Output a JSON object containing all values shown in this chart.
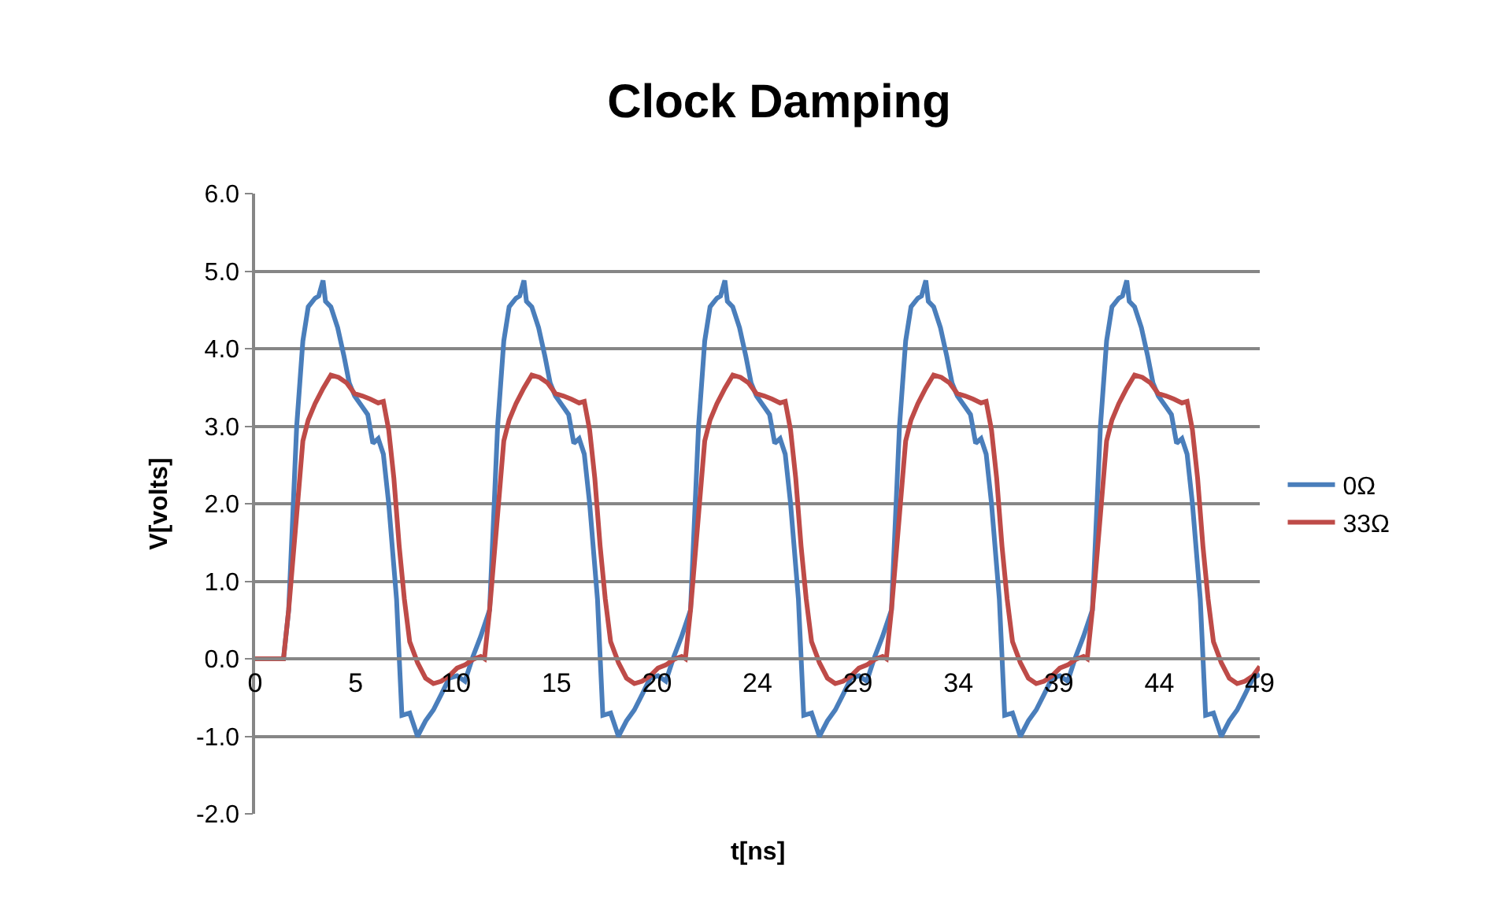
{
  "chart_data": {
    "type": "line",
    "title": "Clock Damping",
    "xlabel": "t[ns]",
    "ylabel": "V[volts]",
    "xlim": [
      0,
      48.8
    ],
    "xticks": [
      {
        "value": 0,
        "label": "0"
      },
      {
        "value": 4.88,
        "label": "5"
      },
      {
        "value": 9.76,
        "label": "10"
      },
      {
        "value": 14.64,
        "label": "15"
      },
      {
        "value": 19.52,
        "label": "20"
      },
      {
        "value": 24.4,
        "label": "24"
      },
      {
        "value": 29.28,
        "label": "29"
      },
      {
        "value": 34.16,
        "label": "34"
      },
      {
        "value": 39.04,
        "label": "39"
      },
      {
        "value": 43.92,
        "label": "44"
      },
      {
        "value": 48.8,
        "label": "49"
      }
    ],
    "ylim": [
      -2,
      6
    ],
    "yticks": [
      {
        "value": -2,
        "label": "-2.0"
      },
      {
        "value": -1,
        "label": "-1.0"
      },
      {
        "value": 0,
        "label": "0.0"
      },
      {
        "value": 1,
        "label": "1.0"
      },
      {
        "value": 2,
        "label": "2.0"
      },
      {
        "value": 3,
        "label": "3.0"
      },
      {
        "value": 4,
        "label": "4.0"
      },
      {
        "value": 5,
        "label": "5.0"
      },
      {
        "value": 6,
        "label": "6.0"
      }
    ],
    "grid": "y",
    "legend": "right",
    "marker": "none",
    "line_style": "solid",
    "series": [
      {
        "name": "0Ω",
        "color": "#4a7ebb",
        "x": [
          0,
          1.38,
          1.63,
          2.02,
          2.32,
          2.58,
          2.91,
          3.09,
          3.3,
          3.42,
          3.68,
          4.01,
          4.32,
          4.57,
          4.83,
          5.21,
          5.47,
          5.72,
          5.98,
          6.23,
          6.49,
          6.87,
          7.13,
          7.51,
          7.89,
          8.28,
          8.66,
          9.04,
          9.43,
          9.81,
          10.19,
          10.57,
          10.96,
          11.39,
          11.78,
          12.08,
          12.34,
          12.67,
          12.85,
          13.06,
          13.18,
          13.44,
          13.77,
          14.08,
          14.33,
          14.59,
          14.97,
          15.23,
          15.48,
          15.74,
          15.99,
          16.25,
          16.63,
          16.89,
          17.27,
          17.65,
          18.04,
          18.42,
          18.8,
          19.19,
          19.57,
          19.95,
          20.33,
          20.72,
          21.15,
          21.54,
          21.84,
          22.1,
          22.43,
          22.61,
          22.82,
          22.94,
          23.2,
          23.53,
          23.84,
          24.09,
          24.35,
          24.73,
          24.99,
          25.24,
          25.5,
          25.75,
          26.01,
          26.39,
          26.65,
          27.03,
          27.41,
          27.8,
          28.18,
          28.56,
          28.95,
          29.33,
          29.71,
          30.09,
          30.48,
          30.91,
          31.3,
          31.6,
          31.86,
          32.19,
          32.37,
          32.58,
          32.7,
          32.96,
          33.29,
          33.6,
          33.85,
          34.11,
          34.49,
          34.75,
          35.0,
          35.26,
          35.51,
          35.77,
          36.15,
          36.41,
          36.79,
          37.17,
          37.56,
          37.94,
          38.32,
          38.71,
          39.09,
          39.47,
          39.85,
          40.24,
          40.67,
          41.06,
          41.36,
          41.62,
          41.95,
          42.13,
          42.34,
          42.46,
          42.72,
          43.05,
          43.36,
          43.61,
          43.87,
          44.25,
          44.51,
          44.76,
          45.02,
          45.27,
          45.53,
          45.91,
          46.17,
          46.55,
          46.93,
          47.32,
          47.7,
          48.08,
          48.47,
          48.8
        ],
        "values": [
          0,
          0,
          0.63,
          3.0,
          4.1,
          4.54,
          4.65,
          4.68,
          4.88,
          4.61,
          4.54,
          4.27,
          3.9,
          3.56,
          3.39,
          3.25,
          3.15,
          2.78,
          2.84,
          2.64,
          2.0,
          0.77,
          -0.73,
          -0.7,
          -1.0,
          -0.8,
          -0.66,
          -0.46,
          -0.25,
          -0.22,
          -0.29,
          0.02,
          0.29,
          0.63,
          3.0,
          4.1,
          4.54,
          4.65,
          4.68,
          4.88,
          4.61,
          4.54,
          4.27,
          3.9,
          3.56,
          3.39,
          3.25,
          3.15,
          2.78,
          2.84,
          2.64,
          2.0,
          0.77,
          -0.73,
          -0.7,
          -1.0,
          -0.8,
          -0.66,
          -0.46,
          -0.25,
          -0.22,
          -0.29,
          0.02,
          0.29,
          0.63,
          3.0,
          4.1,
          4.54,
          4.65,
          4.68,
          4.88,
          4.61,
          4.54,
          4.27,
          3.9,
          3.56,
          3.39,
          3.25,
          3.15,
          2.78,
          2.84,
          2.64,
          2.0,
          0.77,
          -0.73,
          -0.7,
          -1.0,
          -0.8,
          -0.66,
          -0.46,
          -0.25,
          -0.22,
          -0.29,
          0.02,
          0.29,
          0.63,
          3.0,
          4.1,
          4.54,
          4.65,
          4.68,
          4.88,
          4.61,
          4.54,
          4.27,
          3.9,
          3.56,
          3.39,
          3.25,
          3.15,
          2.78,
          2.84,
          2.64,
          2.0,
          0.77,
          -0.73,
          -0.7,
          -1.0,
          -0.8,
          -0.66,
          -0.46,
          -0.25,
          -0.22,
          -0.29,
          0.02,
          0.29,
          0.63,
          3.0,
          4.1,
          4.54,
          4.65,
          4.68,
          4.88,
          4.61,
          4.54,
          4.27,
          3.9,
          3.56,
          3.39,
          3.25,
          3.15,
          2.78,
          2.84,
          2.64,
          2.0,
          0.77,
          -0.73,
          -0.7,
          -1.0,
          -0.8,
          -0.66,
          -0.46,
          -0.25,
          -0.2
        ]
      },
      {
        "name": "33Ω",
        "color": "#be4b48",
        "x": [
          0,
          1.38,
          1.63,
          2.02,
          2.32,
          2.58,
          2.91,
          3.3,
          3.68,
          4.06,
          4.44,
          4.83,
          5.21,
          5.59,
          5.98,
          6.23,
          6.49,
          6.74,
          7.0,
          7.25,
          7.51,
          7.89,
          8.28,
          8.66,
          9.04,
          9.43,
          9.81,
          10.19,
          10.57,
          10.96,
          11.14,
          11.39,
          11.78,
          12.08,
          12.34,
          12.67,
          13.06,
          13.44,
          13.82,
          14.2,
          14.59,
          14.97,
          15.35,
          15.74,
          15.99,
          16.25,
          16.5,
          16.76,
          17.01,
          17.27,
          17.65,
          18.04,
          18.42,
          18.8,
          19.19,
          19.57,
          19.95,
          20.33,
          20.72,
          20.9,
          21.15,
          21.54,
          21.84,
          22.1,
          22.43,
          22.82,
          23.2,
          23.58,
          23.96,
          24.35,
          24.73,
          25.11,
          25.5,
          25.75,
          26.01,
          26.26,
          26.52,
          26.77,
          27.03,
          27.41,
          27.8,
          28.18,
          28.56,
          28.95,
          29.33,
          29.71,
          30.09,
          30.48,
          30.66,
          30.91,
          31.3,
          31.6,
          31.86,
          32.19,
          32.58,
          32.96,
          33.34,
          33.72,
          34.11,
          34.49,
          34.87,
          35.26,
          35.51,
          35.77,
          36.02,
          36.28,
          36.53,
          36.79,
          37.17,
          37.56,
          37.94,
          38.32,
          38.71,
          39.09,
          39.47,
          39.85,
          40.24,
          40.42,
          40.67,
          41.06,
          41.36,
          41.62,
          41.95,
          42.34,
          42.72,
          43.1,
          43.48,
          43.87,
          44.25,
          44.63,
          45.02,
          45.27,
          45.53,
          45.78,
          46.04,
          46.29,
          46.55,
          46.93,
          47.32,
          47.7,
          48.08,
          48.47,
          48.8
        ],
        "values": [
          0,
          0,
          0.63,
          1.86,
          2.81,
          3.08,
          3.29,
          3.49,
          3.66,
          3.63,
          3.56,
          3.42,
          3.39,
          3.35,
          3.3,
          3.32,
          2.95,
          2.33,
          1.45,
          0.77,
          0.22,
          -0.05,
          -0.25,
          -0.32,
          -0.29,
          -0.22,
          -0.12,
          -0.08,
          -0.01,
          0.03,
          0,
          0.63,
          1.86,
          2.81,
          3.08,
          3.29,
          3.49,
          3.66,
          3.63,
          3.56,
          3.42,
          3.39,
          3.35,
          3.3,
          3.32,
          2.95,
          2.33,
          1.45,
          0.77,
          0.22,
          -0.05,
          -0.25,
          -0.32,
          -0.29,
          -0.22,
          -0.12,
          -0.08,
          -0.01,
          0.03,
          0,
          0.63,
          1.86,
          2.81,
          3.08,
          3.29,
          3.49,
          3.66,
          3.63,
          3.56,
          3.42,
          3.39,
          3.35,
          3.3,
          3.32,
          2.95,
          2.33,
          1.45,
          0.77,
          0.22,
          -0.05,
          -0.25,
          -0.32,
          -0.29,
          -0.22,
          -0.12,
          -0.08,
          -0.01,
          0.03,
          0,
          0.63,
          1.86,
          2.81,
          3.08,
          3.29,
          3.49,
          3.66,
          3.63,
          3.56,
          3.42,
          3.39,
          3.35,
          3.3,
          3.32,
          2.95,
          2.33,
          1.45,
          0.77,
          0.22,
          -0.05,
          -0.25,
          -0.32,
          -0.29,
          -0.22,
          -0.12,
          -0.08,
          -0.01,
          0.03,
          0,
          0.63,
          1.86,
          2.81,
          3.08,
          3.29,
          3.49,
          3.66,
          3.63,
          3.56,
          3.42,
          3.39,
          3.35,
          3.3,
          3.32,
          2.95,
          2.33,
          1.45,
          0.77,
          0.22,
          -0.05,
          -0.25,
          -0.32,
          -0.29,
          -0.22,
          -0.1
        ]
      }
    ]
  }
}
